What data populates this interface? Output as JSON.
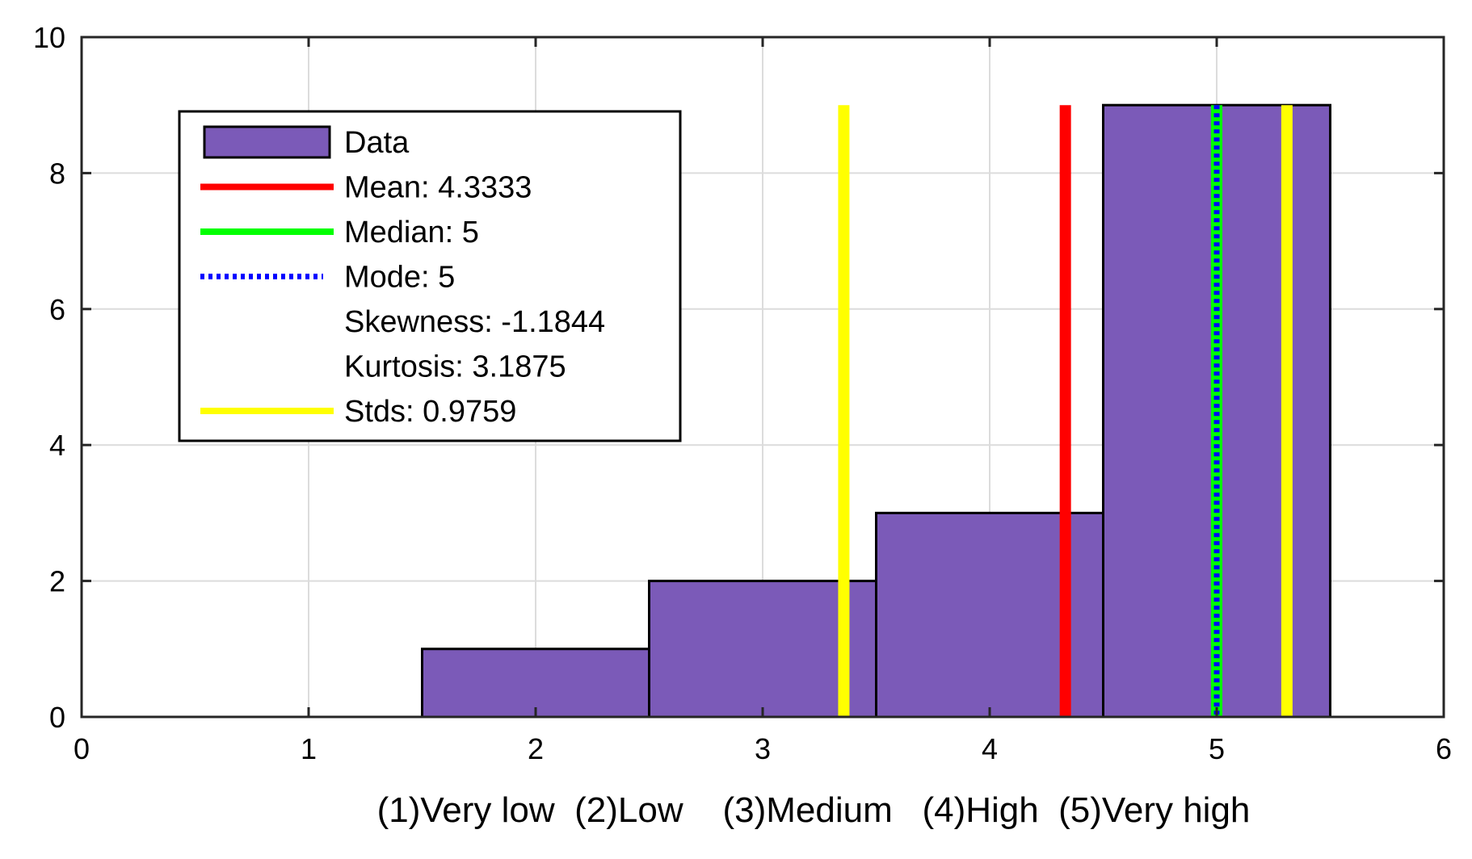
{
  "chart_data": {
    "type": "bar",
    "subtype": "histogram",
    "xlabel": "(1)Very low  (2)Low    (3)Medium   (4)High  (5)Very high",
    "ylabel": "",
    "xlim": [
      0,
      6
    ],
    "ylim": [
      0,
      10
    ],
    "xticks": [
      0,
      1,
      2,
      3,
      4,
      5,
      6
    ],
    "yticks": [
      0,
      2,
      4,
      6,
      8,
      10
    ],
    "grid": true,
    "legend_position": "top-left",
    "bins": [
      {
        "category": 2,
        "left": 1.5,
        "right": 2.5,
        "count": 1
      },
      {
        "category": 3,
        "left": 2.5,
        "right": 3.5,
        "count": 2
      },
      {
        "category": 4,
        "left": 3.5,
        "right": 4.5,
        "count": 3
      },
      {
        "category": 5,
        "left": 4.5,
        "right": 5.5,
        "count": 9
      }
    ],
    "vlines": [
      {
        "name": "Mean",
        "x": 4.3333,
        "y_top": 9,
        "color": "#ff0000",
        "style": "solid"
      },
      {
        "name": "Median",
        "x": 5,
        "y_top": 9,
        "color": "#00ff00",
        "style": "solid"
      },
      {
        "name": "Mode",
        "x": 5,
        "y_top": 9,
        "color": "#0000ff",
        "style": "dotted"
      },
      {
        "name": "Std lower",
        "x": 3.3574,
        "y_top": 9,
        "color": "#ffff00",
        "style": "solid"
      },
      {
        "name": "Std upper",
        "x": 5.3092,
        "y_top": 9,
        "color": "#ffff00",
        "style": "solid"
      }
    ],
    "legend": [
      {
        "label": "Data",
        "type": "patch",
        "color": "#7b5ab8"
      },
      {
        "label": "Mean: 4.3333",
        "type": "line",
        "color": "#ff0000",
        "style": "solid"
      },
      {
        "label": "Median: 5",
        "type": "line",
        "color": "#00ff00",
        "style": "solid"
      },
      {
        "label": "Mode: 5",
        "type": "line",
        "color": "#0000ff",
        "style": "dotted"
      },
      {
        "label": "Skewness: -1.1844",
        "type": "none",
        "color": ""
      },
      {
        "label": "Kurtosis: 3.1875",
        "type": "none",
        "color": ""
      },
      {
        "label": "Stds: 0.9759",
        "type": "line",
        "color": "#ffff00",
        "style": "solid"
      }
    ],
    "colors": {
      "bar_fill": "#7b5ab8",
      "bar_edge": "#000000",
      "grid": "#dcdcdc",
      "axis": "#262626"
    }
  }
}
